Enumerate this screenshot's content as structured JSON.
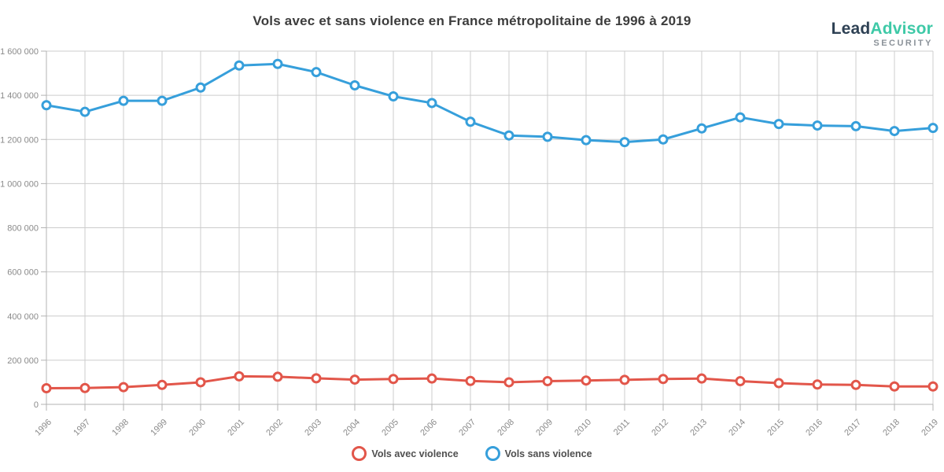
{
  "title": "Vols avec et sans violence en France métropolitaine de 1996 à 2019",
  "logo": {
    "part1": "Lead",
    "part2": "Advisor",
    "subtitle": "SECURITY",
    "part1_color": "#2e4154",
    "part2_color": "#3ec9a7",
    "subtitle_color": "#8b9299"
  },
  "colors": {
    "background": "#ffffff",
    "grid": "#cccccc",
    "axis": "#b3b3b3",
    "tick_label": "#8a8a8a",
    "title_text": "#3d3d3d",
    "legend_text": "#4f4f4f",
    "series_avec": "#e2564a",
    "series_sans": "#369fdb"
  },
  "chart_data": {
    "type": "line",
    "x": [
      "1996",
      "1997",
      "1998",
      "1999",
      "2000",
      "2001",
      "2002",
      "2003",
      "2004",
      "2005",
      "2006",
      "2007",
      "2008",
      "2009",
      "2010",
      "2011",
      "2012",
      "2013",
      "2014",
      "2015",
      "2016",
      "2017",
      "2018",
      "2019"
    ],
    "series": [
      {
        "name": "Vols avec violence",
        "color": "#e2564a",
        "values": [
          73000,
          74000,
          78000,
          88000,
          100000,
          127000,
          125000,
          118000,
          112000,
          115000,
          117000,
          106000,
          100000,
          105000,
          108000,
          111000,
          115000,
          117000,
          105000,
          96000,
          90000,
          88000,
          81000,
          81000
        ]
      },
      {
        "name": "Vols sans violence",
        "color": "#369fdb",
        "values": [
          1355000,
          1325000,
          1375000,
          1375000,
          1435000,
          1535000,
          1542000,
          1505000,
          1445000,
          1395000,
          1365000,
          1280000,
          1218000,
          1212000,
          1197000,
          1188000,
          1200000,
          1250000,
          1300000,
          1270000,
          1263000,
          1260000,
          1238000,
          1252000
        ]
      }
    ],
    "ylim": [
      0,
      1600000
    ],
    "y_tick_step": 200000,
    "y_tick_labels": [
      "0",
      "200 000",
      "400 000",
      "600 000",
      "800 000",
      "1 000 000",
      "1 200 000",
      "1 400 000",
      "1 600 000"
    ],
    "grid": true,
    "legend_position": "bottom",
    "marker_style": "hollow-circle",
    "x_label_rotation": -45
  },
  "legend": {
    "items": [
      {
        "label": "Vols avec violence",
        "color": "#e2564a"
      },
      {
        "label": "Vols sans violence",
        "color": "#369fdb"
      }
    ]
  }
}
